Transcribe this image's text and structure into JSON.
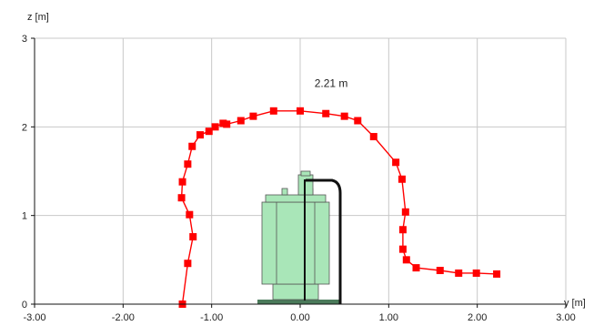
{
  "chart_data": {
    "type": "scatter",
    "xlabel": "y [m]",
    "ylabel": "z [m]",
    "xlim": [
      -3,
      3
    ],
    "ylim": [
      0,
      3
    ],
    "x_ticks": [
      {
        "value": -3,
        "label": "-3.00"
      },
      {
        "value": -2,
        "label": "-2.00"
      },
      {
        "value": -1,
        "label": "-1.00"
      },
      {
        "value": 0,
        "label": "0.00"
      },
      {
        "value": 1,
        "label": "1.00"
      },
      {
        "value": 2,
        "label": "2.00"
      },
      {
        "value": 3,
        "label": "3.00"
      }
    ],
    "y_ticks": [
      {
        "value": 0,
        "label": "0"
      },
      {
        "value": 1,
        "label": "1"
      },
      {
        "value": 2,
        "label": "2"
      },
      {
        "value": 3,
        "label": "3"
      }
    ],
    "grid": true,
    "series": [
      {
        "color": "#ff0000",
        "marker": "square",
        "x": [
          -1.33,
          -1.27,
          -1.21,
          -1.25,
          -1.34,
          -1.33,
          -1.27,
          -1.22,
          -1.13,
          -1.03,
          -0.96,
          -0.87,
          -0.83,
          -0.67,
          -0.53,
          -0.3,
          0.0,
          0.29,
          0.5,
          0.65,
          0.83,
          1.08,
          1.15,
          1.19,
          1.16,
          1.16,
          1.2,
          1.31,
          1.58,
          1.79,
          1.99,
          2.22
        ],
        "y": [
          0.0,
          0.46,
          0.76,
          1.01,
          1.2,
          1.38,
          1.58,
          1.78,
          1.91,
          1.95,
          2.0,
          2.04,
          2.03,
          2.07,
          2.12,
          2.18,
          2.18,
          2.15,
          2.12,
          2.07,
          1.89,
          1.6,
          1.41,
          1.04,
          0.84,
          0.62,
          0.5,
          0.41,
          0.38,
          0.35,
          0.35,
          0.34
        ]
      }
    ],
    "annotations": [
      {
        "text": "2.21 m",
        "x": 0.35,
        "y": 2.45
      }
    ],
    "illustration": "green-equipment-figure"
  }
}
